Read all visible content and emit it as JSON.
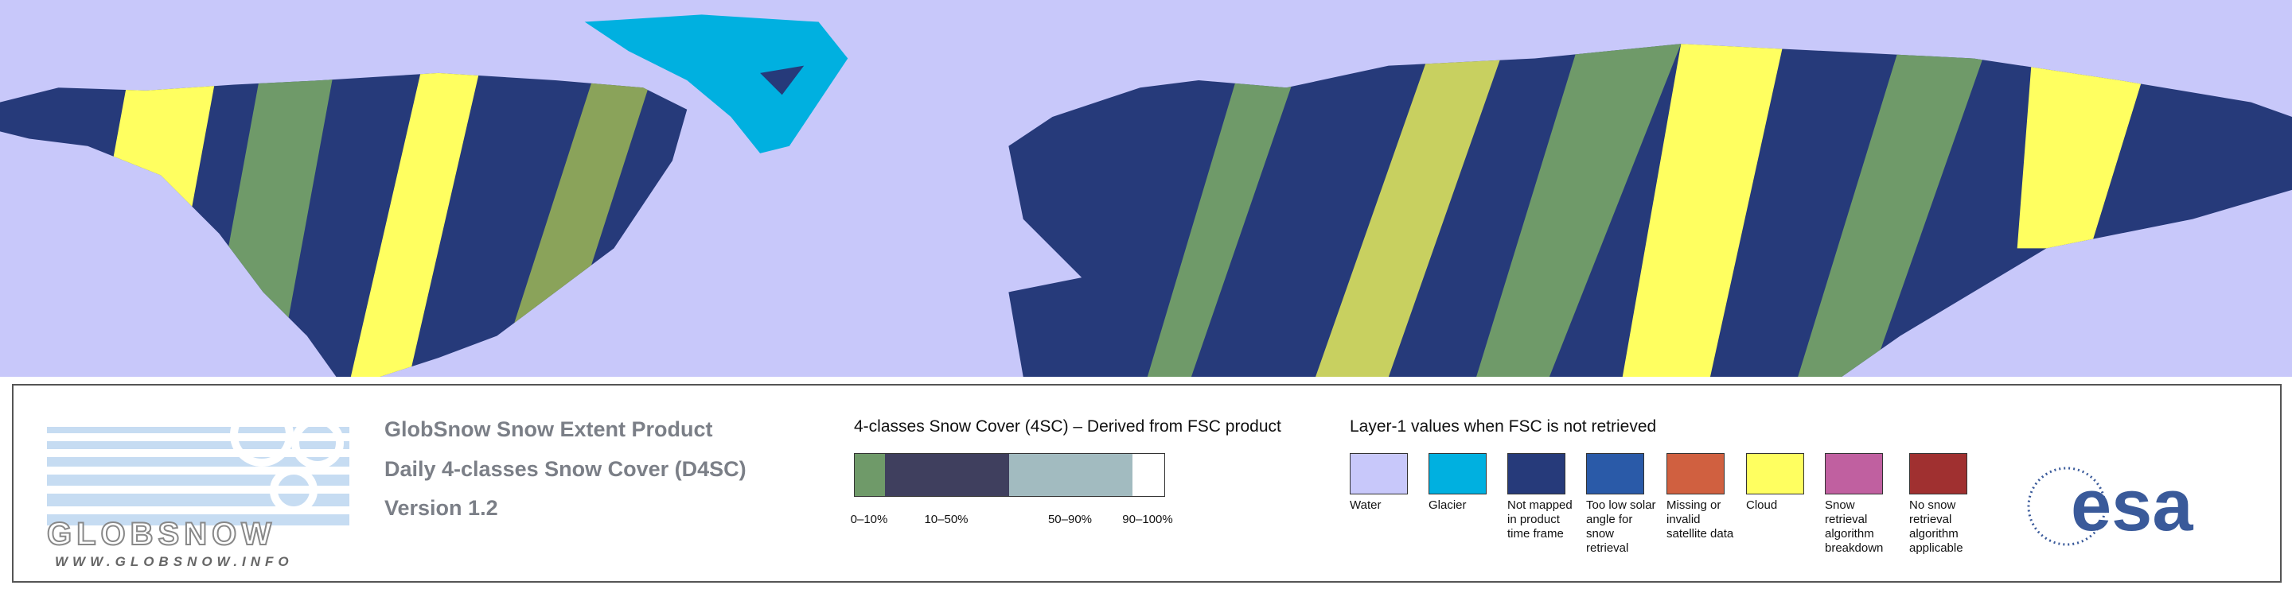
{
  "header": {
    "title": "GlobSnow Snow Extent Product",
    "subtitle": "Daily 4-classes Snow Cover (D4SC)",
    "version": "Version 1.2"
  },
  "logo": {
    "name": "GLOBSNOW",
    "url": "WWW.GLOBSNOW.INFO"
  },
  "snow_cover_legend": {
    "title": "4-classes Snow Cover (4SC) – Derived from FSC product",
    "classes": [
      {
        "label": "0–10%",
        "color": "#6f9a69"
      },
      {
        "label": "10–50%",
        "color": "#3f3f5e"
      },
      {
        "label": "50–90%",
        "color": "#a2bbc0"
      },
      {
        "label": "90–100%",
        "color": "#ffffff"
      }
    ]
  },
  "layer1_legend": {
    "title": "Layer-1 values when FSC is not retrieved",
    "items": [
      {
        "label": "Water",
        "color": "#c8c8fa"
      },
      {
        "label": "Glacier",
        "color": "#00b0e0"
      },
      {
        "label": "Not mapped in product time frame",
        "color": "#263a7a"
      },
      {
        "label": "Too low solar angle for snow retrieval",
        "color": "#2a5aa8"
      },
      {
        "label": "Missing or invalid satellite data",
        "color": "#d06040"
      },
      {
        "label": "Cloud",
        "color": "#ffff60"
      },
      {
        "label": "Snow retrieval algorithm breakdown",
        "color": "#c060a0"
      },
      {
        "label": "No snow retrieval algorithm applicable",
        "color": "#a03030"
      }
    ]
  },
  "agency": "esa"
}
